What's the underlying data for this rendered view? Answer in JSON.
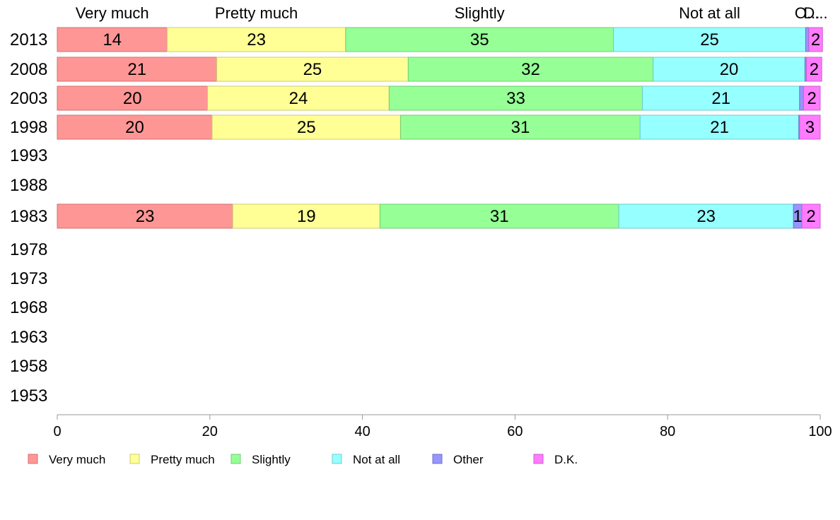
{
  "chart_data": {
    "type": "bar",
    "orientation": "horizontal",
    "stacked": true,
    "x_ticks": [
      "0",
      "20",
      "40",
      "60",
      "80",
      "100"
    ],
    "xlim": [
      0,
      100
    ],
    "categories": [
      "2013",
      "2008",
      "2003",
      "1998",
      "1993",
      "1988",
      "1983",
      "1978",
      "1973",
      "1968",
      "1963",
      "1958",
      "1953"
    ],
    "top_labels": [
      "Very much",
      "Pretty much",
      "Slightly",
      "Not at all",
      "O...",
      "D..."
    ],
    "series": [
      {
        "name": "Very much",
        "color": "#ff9696",
        "border": "#d07070",
        "values": [
          14.4,
          20.9,
          19.7,
          20.3,
          null,
          null,
          23.0,
          null,
          null,
          null,
          null,
          null,
          null
        ],
        "labels": [
          "14",
          "21",
          "20",
          "20",
          "",
          "",
          "23",
          "",
          "",
          "",
          "",
          "",
          ""
        ]
      },
      {
        "name": "Pretty much",
        "color": "#ffff96",
        "border": "#cccc70",
        "values": [
          23.4,
          25.1,
          23.8,
          24.7,
          null,
          null,
          19.3,
          null,
          null,
          null,
          null,
          null,
          null
        ],
        "labels": [
          "23",
          "25",
          "24",
          "25",
          "",
          "",
          "19",
          "",
          "",
          "",
          "",
          "",
          ""
        ]
      },
      {
        "name": "Slightly",
        "color": "#96ff96",
        "border": "#70cc70",
        "values": [
          35.1,
          32.1,
          33.2,
          31.4,
          null,
          null,
          31.3,
          null,
          null,
          null,
          null,
          null,
          null
        ],
        "labels": [
          "35",
          "32",
          "33",
          "31",
          "",
          "",
          "31",
          "",
          "",
          "",
          "",
          "",
          ""
        ]
      },
      {
        "name": "Not at all",
        "color": "#96ffff",
        "border": "#70cccc",
        "values": [
          25.2,
          19.9,
          20.6,
          20.8,
          null,
          null,
          22.9,
          null,
          null,
          null,
          null,
          null,
          null
        ],
        "labels": [
          "25",
          "20",
          "21",
          "21",
          "",
          "",
          "23",
          "",
          "",
          "",
          "",
          "",
          ""
        ]
      },
      {
        "name": "Other",
        "color": "#9696ff",
        "border": "#7070cc",
        "values": [
          0.4,
          0.2,
          0.5,
          0.1,
          null,
          null,
          1.1,
          null,
          null,
          null,
          null,
          null,
          null
        ],
        "labels": [
          "",
          "",
          "",
          "",
          "",
          "",
          "1",
          "",
          "",
          "",
          "",
          "",
          ""
        ]
      },
      {
        "name": "D.K.",
        "color": "#ff7bff",
        "border": "#cc5ccc",
        "values": [
          1.8,
          2.0,
          2.2,
          2.7,
          null,
          null,
          2.4,
          null,
          null,
          null,
          null,
          null,
          null
        ],
        "labels": [
          "2",
          "2",
          "2",
          "3",
          "",
          "",
          "2",
          "",
          "",
          "",
          "",
          "",
          ""
        ]
      }
    ],
    "legend_position": "bottom",
    "grid": false
  }
}
